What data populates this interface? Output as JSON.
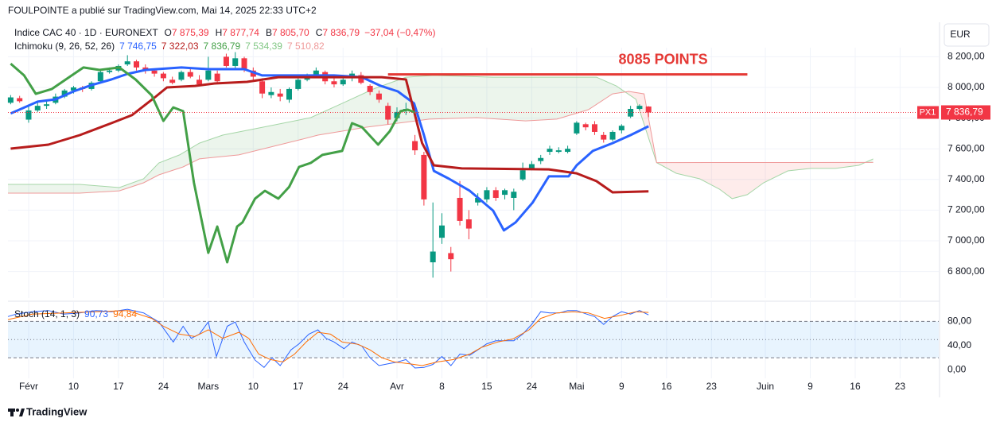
{
  "header": "FOULPOINTE a publié sur TradingView.com, Mai 14, 2025 22:33 UTC+2",
  "currency": "EUR",
  "footer": "TradingView",
  "chart_data": [
    {
      "type": "candlestick",
      "title": "Indice CAC 40 · 1D · EURONEXT",
      "ohlc_legend": [
        {
          "key": "O",
          "label": "7 875,39"
        },
        {
          "key": "H",
          "label": "7 877,74"
        },
        {
          "key": "B",
          "label": "7 805,70"
        },
        {
          "key": "C",
          "label": "7 836,79"
        }
      ],
      "change_label": "−37,04 (−0,47%)",
      "indicator_title": "Ichimoku (9, 26, 52, 26)",
      "up_color": "#089981",
      "down_color": "#f23645",
      "open": [
        7900,
        7930,
        7790,
        7850,
        7880,
        7900,
        7940,
        7980,
        8000,
        7990,
        8040,
        8100,
        8110,
        8150,
        8170,
        8130,
        8110,
        8090,
        8050,
        8050,
        8100,
        8050,
        8050,
        8090,
        8200,
        8140,
        8190,
        8110,
        8040,
        7950,
        7960,
        7920,
        7990,
        8050,
        8070,
        8100,
        8040,
        8020,
        8060,
        8080,
        8010,
        7960,
        7880,
        7800,
        7850,
        7650,
        7560,
        6860,
        7020,
        6920,
        7280,
        7140,
        7250,
        7270,
        7330,
        7300,
        7280,
        7400,
        7470,
        7520,
        7580,
        7580,
        7580,
        7700,
        7760,
        7760,
        7690,
        7660,
        7720,
        7810,
        7860,
        7875.39
      ],
      "high": [
        7950,
        7945,
        7880,
        7900,
        7910,
        7960,
        7990,
        8010,
        8010,
        8040,
        8120,
        8130,
        8150,
        8210,
        8180,
        8150,
        8120,
        8100,
        8070,
        8110,
        8120,
        8080,
        8200,
        8110,
        8220,
        8230,
        8200,
        8130,
        8060,
        8000,
        7990,
        8000,
        8060,
        8090,
        8130,
        8110,
        8070,
        8080,
        8110,
        8100,
        8020,
        7980,
        7900,
        7870,
        7900,
        7690,
        7580,
        7250,
        7180,
        6960,
        7390,
        7200,
        7310,
        7350,
        7350,
        7340,
        7340,
        7510,
        7520,
        7560,
        7620,
        7610,
        7620,
        7780,
        7770,
        7780,
        7710,
        7720,
        7760,
        7880,
        7890,
        7877.74
      ],
      "low": [
        7890,
        7900,
        7770,
        7840,
        7860,
        7890,
        7930,
        7960,
        7970,
        7980,
        8030,
        8090,
        8100,
        8140,
        8110,
        8090,
        8070,
        8040,
        8020,
        8040,
        8060,
        8010,
        8040,
        8030,
        8130,
        8120,
        8100,
        8050,
        7930,
        7930,
        7910,
        7900,
        7980,
        8040,
        8060,
        8020,
        8000,
        8010,
        8040,
        8020,
        7950,
        7900,
        7760,
        7780,
        7820,
        7560,
        7230,
        6760,
        6980,
        6800,
        7100,
        7010,
        7230,
        7250,
        7260,
        7270,
        7200,
        7390,
        7460,
        7500,
        7560,
        7570,
        7570,
        7690,
        7720,
        7690,
        7640,
        7650,
        7700,
        7800,
        7850,
        7805.7
      ],
      "close": [
        7935,
        7910,
        7850,
        7880,
        7890,
        7940,
        7980,
        8000,
        7990,
        8030,
        8100,
        8110,
        8140,
        8170,
        8130,
        8110,
        8090,
        8060,
        8030,
        8100,
        8070,
        8020,
        8110,
        8040,
        8140,
        8190,
        8120,
        8070,
        7960,
        7970,
        7940,
        7990,
        8050,
        8070,
        8110,
        8040,
        8020,
        8050,
        8090,
        8030,
        7970,
        7920,
        7790,
        7840,
        7860,
        7590,
        7270,
        6930,
        7100,
        6880,
        7130,
        7080,
        7280,
        7330,
        7280,
        7330,
        7320,
        7460,
        7500,
        7540,
        7600,
        7590,
        7600,
        7770,
        7740,
        7710,
        7660,
        7710,
        7750,
        7860,
        7880,
        7836.79
      ],
      "lines": [
        {
          "color": "#2962ff",
          "legend_label": "7 746,75",
          "x": [
            0,
            3,
            5,
            7,
            9,
            11.2,
            13,
            15,
            19,
            22,
            26,
            28,
            29.8,
            36,
            39.1,
            41.2,
            43.1,
            44.9,
            46,
            47.1,
            48.8,
            51.1,
            53.7,
            54.9,
            56.2,
            58.1,
            59.9,
            62.1,
            63,
            64.8,
            67,
            69,
            71
          ],
          "values": [
            7830,
            7907,
            7922,
            7974,
            8015,
            8052,
            8088,
            8114,
            8130,
            8119,
            8119,
            8078,
            8078,
            8078,
            8067,
            8010,
            7974,
            7896,
            7689,
            7456,
            7404,
            7326,
            7197,
            7068,
            7120,
            7249,
            7420,
            7420,
            7492,
            7586,
            7637,
            7689,
            7746.75
          ]
        },
        {
          "color": "#b71c1c",
          "legend_label": "7 322,03",
          "x": [
            0,
            4.2,
            7.7,
            11.2,
            13.5,
            16.1,
            17.4,
            20.5,
            22.7,
            26.3,
            29.8,
            41.3,
            44,
            45.8,
            47.1,
            50.2,
            59.9,
            63,
            65.2,
            67,
            71
          ],
          "values": [
            7601,
            7627,
            7689,
            7767,
            7819,
            7938,
            8000,
            8010,
            8026,
            8036,
            8067,
            8067,
            8052,
            7637,
            7492,
            7472,
            7466,
            7440,
            7389,
            7316,
            7322.03
          ]
        },
        {
          "color": "#43a047",
          "legend_label": "7 836,79",
          "x": [
            0,
            1.5,
            2.8,
            4.6,
            6.8,
            8.1,
            9.9,
            12.1,
            13.9,
            15.7,
            17,
            18.1,
            19.2,
            20.4,
            22,
            23,
            24.1,
            25.2,
            25.8,
            27.2,
            28.3,
            29.8,
            31,
            32.1,
            33.4,
            34.7,
            36.9,
            38,
            39.1,
            40.9,
            42.2,
            43.4,
            44.2,
            45
          ],
          "values": [
            8155,
            8078,
            7958,
            7990,
            8078,
            8130,
            8114,
            8130,
            8052,
            7948,
            7782,
            7870,
            7845,
            7378,
            6922,
            7093,
            6860,
            7093,
            7120,
            7275,
            7326,
            7275,
            7352,
            7482,
            7508,
            7560,
            7586,
            7767,
            7741,
            7627,
            7715,
            7845,
            7855,
            7836.79
          ]
        }
      ],
      "cloud": {
        "up_fill": "#43a0471a",
        "down_fill": "#f443361a",
        "span_a": {
          "color": "#a5d6a7",
          "legend_label": "7 534,39",
          "x": [
            -0.3,
            7.7,
            12.1,
            14.8,
            16.5,
            18.8,
            21,
            23.6,
            28.1,
            33.4,
            36.9,
            40.4,
            44,
            47.1,
            53.7,
            60.8,
            65.2,
            67.4,
            69.6,
            71.9,
            74.1,
            76.7,
            78.9,
            80.3,
            82,
            83.8,
            86.5,
            89.1,
            91.8,
            94.4,
            96
          ],
          "values": [
            7368,
            7368,
            7347,
            7404,
            7508,
            7560,
            7637,
            7689,
            7741,
            7803,
            7896,
            7990,
            8067,
            8078,
            8067,
            8067,
            8067,
            8010,
            7922,
            7510,
            7440,
            7404,
            7337,
            7275,
            7301,
            7378,
            7456,
            7472,
            7472,
            7492,
            7534.39
          ]
        },
        "span_b": {
          "color": "#ef9a9a",
          "legend_label": "7 510,82",
          "x": [
            -0.3,
            7.7,
            12.1,
            14.8,
            16.5,
            19.2,
            21,
            25.4,
            32.5,
            34.2,
            36.9,
            39.6,
            43.1,
            46.6,
            51.9,
            57.3,
            60.8,
            64.3,
            67,
            68.8,
            70.5,
            71.9,
            96
          ],
          "values": [
            7311,
            7311,
            7326,
            7378,
            7430,
            7482,
            7534,
            7560,
            7663,
            7689,
            7715,
            7741,
            7767,
            7793,
            7803,
            7782,
            7793,
            7855,
            7958,
            7974,
            7958,
            7510,
            7510.82
          ]
        }
      },
      "level": {
        "value": 8085,
        "x": [
          42,
          82
        ],
        "label": "8085 POINTS",
        "color": "#e53935"
      },
      "price_label": {
        "name": "PX1",
        "label": "7 836,79",
        "color": "#f23645"
      },
      "xlim": [
        -0.3,
        103.3
      ],
      "xticks": [
        {
          "value": 2,
          "label": "Févr"
        },
        {
          "value": 7,
          "label": "10"
        },
        {
          "value": 12,
          "label": "17"
        },
        {
          "value": 17,
          "label": "24"
        },
        {
          "value": 22,
          "label": "Mars"
        },
        {
          "value": 27,
          "label": "10"
        },
        {
          "value": 32,
          "label": "17"
        },
        {
          "value": 37,
          "label": "24"
        },
        {
          "value": 43,
          "label": "Avr"
        },
        {
          "value": 48,
          "label": "8"
        },
        {
          "value": 53,
          "label": "15"
        },
        {
          "value": 58,
          "label": "24"
        },
        {
          "value": 63,
          "label": "Mai"
        },
        {
          "value": 68,
          "label": "9"
        },
        {
          "value": 73,
          "label": "16"
        },
        {
          "value": 78,
          "label": "23"
        },
        {
          "value": 84,
          "label": "Juin"
        },
        {
          "value": 89,
          "label": "9"
        },
        {
          "value": 94,
          "label": "16"
        },
        {
          "value": 99,
          "label": "23"
        }
      ],
      "ylim": [
        6627,
        8259
      ],
      "yticks": [
        {
          "value": 6800,
          "label": "6 800,00"
        },
        {
          "value": 7000,
          "label": "7 000,00"
        },
        {
          "value": 7200,
          "label": "7 200,00"
        },
        {
          "value": 7400,
          "label": "7 400,00"
        },
        {
          "value": 7600,
          "label": "7 600,00"
        },
        {
          "value": 7800,
          "label": "7 800,00"
        },
        {
          "value": 8000,
          "label": "8 000,00"
        },
        {
          "value": 8200,
          "label": "8 200,00"
        }
      ],
      "grid": true
    },
    {
      "type": "line",
      "title": "Stoch (14, 1, 3)",
      "series": [
        {
          "color": "#2962ff",
          "legend_label": "90,73",
          "x": [
            -0.3,
            0.6,
            2.4,
            4.2,
            5.9,
            7.7,
            9.5,
            11.2,
            13,
            14.8,
            16.5,
            18.1,
            19.2,
            20.1,
            21,
            22,
            22.9,
            24.1,
            25,
            26,
            27.2,
            28.2,
            29.1,
            30,
            31.2,
            32.1,
            33.2,
            34.2,
            35.1,
            36,
            37.1,
            38,
            39.1,
            40,
            41,
            42,
            43.1,
            44,
            45,
            46,
            47,
            48,
            49,
            50,
            51.1,
            52,
            53,
            54,
            56,
            57,
            58,
            59,
            60,
            61.1,
            62,
            63,
            64.1,
            65,
            66,
            67,
            68,
            69,
            70,
            71
          ],
          "values": [
            88,
            92,
            96,
            98,
            92,
            94,
            98,
            96,
            100,
            94,
            79,
            46,
            72,
            52,
            59,
            79,
            22,
            72,
            79,
            46,
            16,
            4,
            20,
            7,
            33,
            43,
            59,
            66,
            52,
            46,
            35,
            46,
            39,
            20,
            7,
            10,
            13,
            17,
            3,
            4,
            9,
            22,
            7,
            26,
            24,
            33,
            43,
            48,
            48,
            59,
            75,
            96,
            94,
            94,
            98,
            98,
            92,
            88,
            75,
            88,
            96,
            92,
            98,
            90.73
          ]
        },
        {
          "color": "#ff6d00",
          "legend_label": "94,84",
          "x": [
            -0.3,
            2.4,
            5.9,
            9.5,
            13,
            15.7,
            17,
            18.8,
            20.5,
            22,
            23.6,
            25.4,
            26.5,
            27.6,
            28.9,
            30.3,
            31.6,
            32.9,
            34.2,
            35.6,
            36.9,
            38.7,
            40,
            41.3,
            42.7,
            44.4,
            45.8,
            47.5,
            49.3,
            51.1,
            52.4,
            54.2,
            55.9,
            57.7,
            59,
            60.8,
            62.6,
            64.3,
            66.1,
            67.9,
            69.6,
            71
          ],
          "values": [
            83,
            92,
            94,
            96,
            98,
            85,
            72,
            59,
            55,
            66,
            52,
            62,
            52,
            26,
            17,
            13,
            26,
            46,
            62,
            59,
            46,
            42,
            33,
            20,
            13,
            10,
            7,
            13,
            17,
            26,
            37,
            46,
            51,
            66,
            85,
            94,
            96,
            94,
            85,
            90,
            96,
            94.84
          ]
        }
      ],
      "bands": [
        20,
        50,
        80
      ],
      "band_fill": "#2196f31a",
      "ylim": [
        -14,
        112
      ],
      "yticks": [
        {
          "value": 0,
          "label": "0,00"
        },
        {
          "value": 40,
          "label": "40,00"
        },
        {
          "value": 80,
          "label": "80,00"
        }
      ]
    }
  ]
}
